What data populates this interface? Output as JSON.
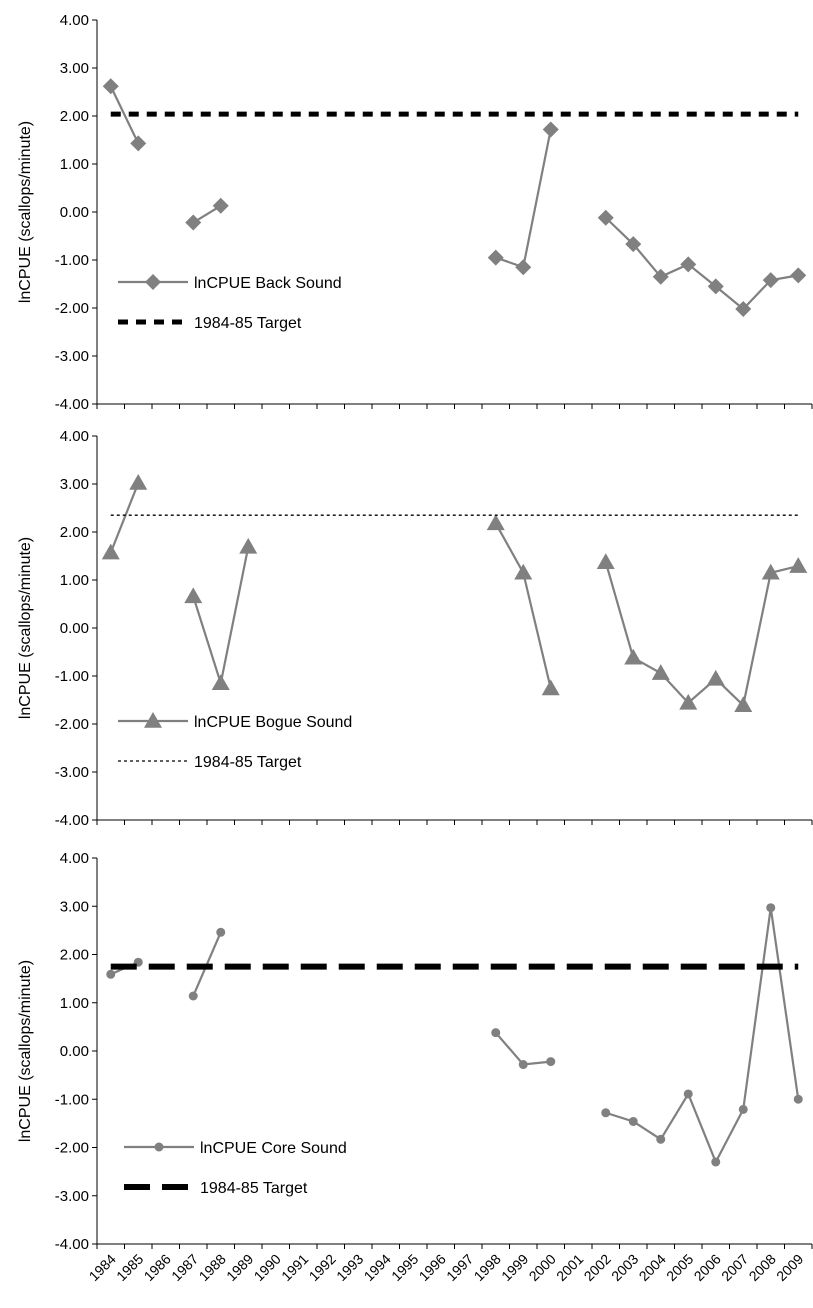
{
  "colors": {
    "series": "#808080",
    "target": "#000000",
    "axis": "#000000"
  },
  "x_labels": [
    "1984",
    "1985",
    "1986",
    "1987",
    "1988",
    "1989",
    "1990",
    "1991",
    "1992",
    "1993",
    "1994",
    "1995",
    "1996",
    "1997",
    "1998",
    "1999",
    "2000",
    "2001",
    "2002",
    "2003",
    "2004",
    "2005",
    "2006",
    "2007",
    "2008",
    "2009"
  ],
  "chart_data": [
    {
      "type": "line",
      "ylabel": "lnCPUE (scallops/minute)",
      "ylim": [
        -4,
        4
      ],
      "yticks": [
        "-4.00",
        "-3.00",
        "-2.00",
        "-1.00",
        "0.00",
        "1.00",
        "2.00",
        "3.00",
        "4.00"
      ],
      "marker": "diamond",
      "series": [
        {
          "name": "lnCPUE Back Sound",
          "values": [
            2.62,
            1.43,
            null,
            -0.22,
            0.13,
            null,
            null,
            null,
            null,
            null,
            null,
            null,
            null,
            null,
            -0.95,
            -1.15,
            1.72,
            null,
            -0.12,
            -0.67,
            -1.35,
            -1.09,
            -1.55,
            -2.02,
            -1.42,
            -1.32
          ]
        },
        {
          "name": "1984-85 Target",
          "constant": 2.04,
          "style": "short-dash"
        }
      ]
    },
    {
      "type": "line",
      "ylabel": "lnCPUE (scallops/minute)",
      "ylim": [
        -4,
        4
      ],
      "yticks": [
        "-4.00",
        "-3.00",
        "-2.00",
        "-1.00",
        "0.00",
        "1.00",
        "2.00",
        "3.00",
        "4.00"
      ],
      "marker": "triangle",
      "series": [
        {
          "name": "lnCPUE Bogue Sound",
          "values": [
            1.57,
            3.02,
            null,
            0.66,
            -1.15,
            1.69,
            null,
            null,
            null,
            null,
            null,
            null,
            null,
            null,
            2.18,
            1.15,
            -1.26,
            null,
            1.37,
            -0.62,
            -0.94,
            -1.56,
            -1.06,
            -1.61,
            1.15,
            1.29
          ]
        },
        {
          "name": "1984-85 Target",
          "constant": 2.35,
          "style": "dotted"
        }
      ]
    },
    {
      "type": "line",
      "ylabel": "lnCPUE (scallops/minute)",
      "ylim": [
        -4,
        4
      ],
      "yticks": [
        "-4.00",
        "-3.00",
        "-2.00",
        "-1.00",
        "0.00",
        "1.00",
        "2.00",
        "3.00",
        "4.00"
      ],
      "marker": "circle",
      "series": [
        {
          "name": "lnCPUE Core Sound",
          "values": [
            1.59,
            1.84,
            null,
            1.14,
            2.46,
            null,
            null,
            null,
            null,
            null,
            null,
            null,
            null,
            null,
            0.38,
            -0.28,
            -0.22,
            null,
            -1.28,
            -1.46,
            -1.83,
            -0.89,
            -2.3,
            -1.21,
            2.97,
            -1.0
          ]
        },
        {
          "name": "1984-85 Target",
          "constant": 1.75,
          "style": "long-dash"
        }
      ]
    }
  ]
}
